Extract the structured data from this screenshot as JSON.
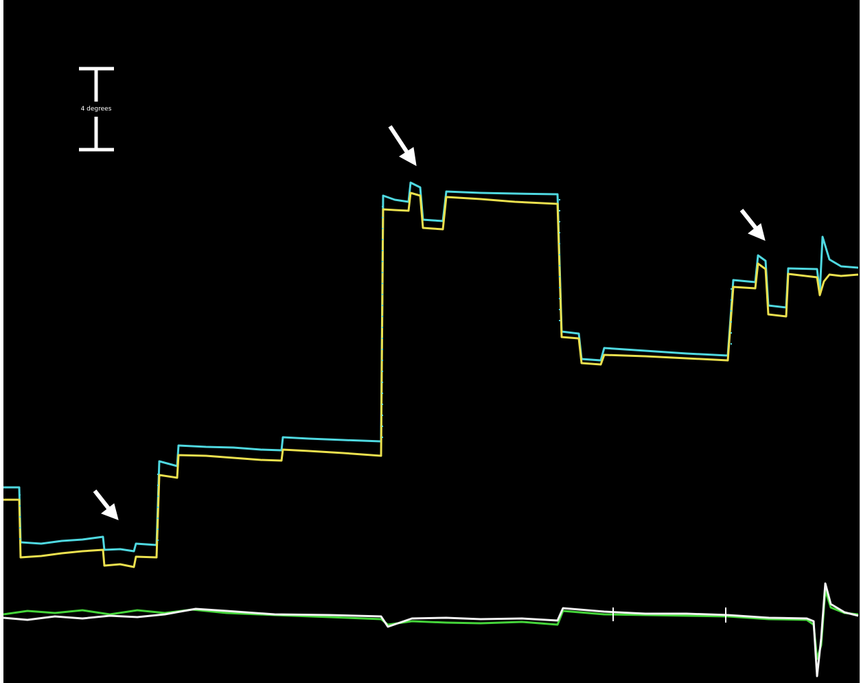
{
  "scale_bar": {
    "label": "4 degrees"
  }
}
